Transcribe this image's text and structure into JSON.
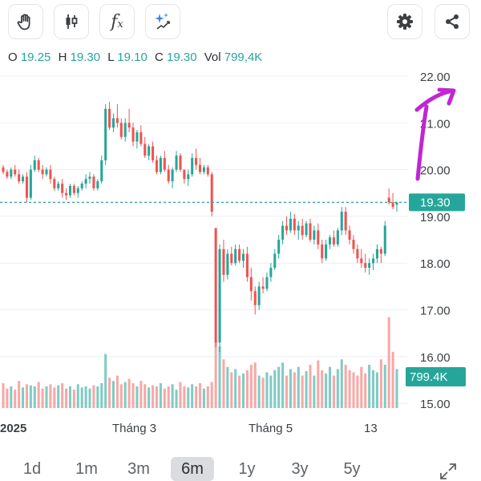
{
  "toolbar": {
    "left_buttons": [
      "hand-icon",
      "candlestick-icon",
      "function-icon",
      "sparkle-icon"
    ],
    "right_buttons": [
      "gear-icon",
      "share-icon"
    ],
    "function_glyph": "f",
    "function_sub": "x"
  },
  "ohlc": {
    "open_label": "O",
    "open": "19.25",
    "high_label": "H",
    "high": "19.30",
    "low_label": "L",
    "low": "19.10",
    "close_label": "C",
    "close": "19.30",
    "vol_label": "Vol",
    "vol": "799,4K"
  },
  "price_badge": "19.30",
  "volume_badge": "799.4K",
  "y_axis_ticks": [
    "22.00",
    "21.00",
    "20.00",
    "19.00",
    "18.00",
    "17.00",
    "16.00",
    "15.00"
  ],
  "x_axis_ticks": [
    "2025",
    "Tháng 3",
    "Tháng 5",
    "13"
  ],
  "ranges": [
    "1d",
    "1m",
    "3m",
    "6m",
    "1y",
    "3y",
    "5y"
  ],
  "active_range": "6m",
  "colors": {
    "up": "#26a69a",
    "down": "#ef5350",
    "volume_up": "#80cbc4",
    "volume_down": "#f7a8a6",
    "annotation": "#c026d3"
  },
  "chart_data": {
    "type": "candlestick",
    "x_labels": [
      "2025",
      "Tháng 3",
      "Tháng 5",
      "13"
    ],
    "ylim": [
      15,
      22.5
    ],
    "last_close": 19.3,
    "last_volume": "799.4K",
    "candles": [
      [
        20.05,
        20.1,
        19.9,
        19.95
      ],
      [
        19.95,
        20.0,
        19.8,
        19.85
      ],
      [
        19.85,
        20.05,
        19.8,
        20.0
      ],
      [
        20.0,
        20.1,
        19.85,
        19.9
      ],
      [
        19.9,
        20.0,
        19.7,
        19.75
      ],
      [
        19.75,
        19.9,
        19.7,
        19.85
      ],
      [
        19.85,
        19.95,
        19.3,
        19.4
      ],
      [
        19.4,
        20.1,
        19.35,
        20.0
      ],
      [
        20.0,
        20.3,
        19.95,
        20.2
      ],
      [
        20.2,
        20.25,
        19.95,
        20.0
      ],
      [
        20.0,
        20.1,
        19.8,
        19.9
      ],
      [
        19.9,
        20.05,
        19.85,
        20.0
      ],
      [
        20.0,
        20.1,
        19.7,
        19.8
      ],
      [
        19.8,
        19.85,
        19.55,
        19.6
      ],
      [
        19.6,
        19.75,
        19.55,
        19.7
      ],
      [
        19.7,
        19.8,
        19.4,
        19.5
      ],
      [
        19.5,
        19.6,
        19.35,
        19.45
      ],
      [
        19.45,
        19.7,
        19.4,
        19.65
      ],
      [
        19.65,
        19.7,
        19.45,
        19.5
      ],
      [
        19.5,
        19.65,
        19.4,
        19.6
      ],
      [
        19.6,
        19.75,
        19.55,
        19.7
      ],
      [
        19.7,
        19.9,
        19.6,
        19.8
      ],
      [
        19.8,
        19.95,
        19.7,
        19.85
      ],
      [
        19.85,
        19.9,
        19.55,
        19.6
      ],
      [
        19.6,
        19.8,
        19.55,
        19.75
      ],
      [
        19.75,
        20.3,
        19.7,
        20.2
      ],
      [
        20.2,
        21.4,
        20.1,
        21.3
      ],
      [
        21.3,
        21.45,
        20.85,
        20.9
      ],
      [
        20.9,
        21.2,
        20.8,
        21.1
      ],
      [
        21.1,
        21.4,
        20.9,
        21.0
      ],
      [
        21.0,
        21.1,
        20.65,
        20.7
      ],
      [
        20.7,
        21.1,
        20.6,
        21.0
      ],
      [
        21.0,
        21.3,
        20.8,
        20.9
      ],
      [
        20.9,
        21.0,
        20.5,
        20.6
      ],
      [
        20.6,
        20.85,
        20.45,
        20.8
      ],
      [
        20.8,
        20.95,
        20.5,
        20.55
      ],
      [
        20.55,
        20.7,
        20.25,
        20.3
      ],
      [
        20.3,
        20.55,
        20.2,
        20.5
      ],
      [
        20.5,
        20.6,
        20.15,
        20.2
      ],
      [
        20.2,
        20.3,
        19.9,
        19.95
      ],
      [
        19.95,
        20.3,
        19.9,
        20.25
      ],
      [
        20.25,
        20.4,
        19.95,
        20.0
      ],
      [
        20.0,
        20.1,
        19.7,
        19.75
      ],
      [
        19.75,
        20.05,
        19.6,
        20.0
      ],
      [
        20.0,
        20.4,
        19.95,
        20.3
      ],
      [
        20.3,
        20.35,
        19.95,
        20.0
      ],
      [
        20.0,
        19.95,
        19.7,
        19.8
      ],
      [
        19.8,
        20.0,
        19.65,
        19.9
      ],
      [
        19.9,
        20.35,
        19.85,
        20.25
      ],
      [
        20.25,
        20.45,
        20.0,
        20.1
      ],
      [
        20.1,
        20.25,
        19.9,
        19.95
      ],
      [
        19.95,
        20.1,
        19.9,
        20.05
      ],
      [
        20.05,
        20.1,
        19.85,
        19.9
      ],
      [
        19.9,
        19.95,
        19.0,
        19.1
      ],
      [
        18.75,
        18.75,
        16.2,
        16.3
      ],
      [
        16.3,
        18.4,
        16.1,
        18.3
      ],
      [
        18.3,
        18.5,
        17.6,
        17.75
      ],
      [
        17.75,
        18.3,
        17.65,
        18.2
      ],
      [
        18.2,
        18.35,
        17.95,
        18.0
      ],
      [
        18.0,
        18.4,
        17.95,
        18.3
      ],
      [
        18.3,
        18.4,
        18.0,
        18.05
      ],
      [
        18.05,
        18.3,
        17.9,
        18.2
      ],
      [
        18.2,
        18.35,
        17.6,
        17.7
      ],
      [
        17.7,
        17.9,
        17.2,
        17.4
      ],
      [
        17.4,
        17.5,
        16.9,
        17.1
      ],
      [
        17.1,
        17.6,
        17.0,
        17.5
      ],
      [
        17.5,
        17.7,
        17.35,
        17.45
      ],
      [
        17.45,
        17.8,
        17.4,
        17.7
      ],
      [
        17.7,
        18.0,
        17.6,
        17.9
      ],
      [
        17.9,
        18.3,
        17.85,
        18.2
      ],
      [
        18.2,
        18.6,
        18.1,
        18.5
      ],
      [
        18.5,
        18.9,
        18.4,
        18.8
      ],
      [
        18.8,
        19.0,
        18.6,
        18.7
      ],
      [
        18.7,
        19.1,
        18.65,
        18.95
      ],
      [
        18.95,
        19.05,
        18.6,
        18.7
      ],
      [
        18.7,
        18.9,
        18.5,
        18.8
      ],
      [
        18.8,
        18.95,
        18.5,
        18.6
      ],
      [
        18.6,
        18.9,
        18.55,
        18.85
      ],
      [
        18.85,
        18.95,
        18.45,
        18.5
      ],
      [
        18.5,
        18.8,
        18.4,
        18.7
      ],
      [
        18.7,
        18.85,
        18.3,
        18.4
      ],
      [
        18.4,
        18.5,
        18.0,
        18.1
      ],
      [
        18.1,
        18.5,
        18.05,
        18.4
      ],
      [
        18.4,
        18.6,
        18.3,
        18.55
      ],
      [
        18.55,
        18.7,
        18.35,
        18.4
      ],
      [
        18.4,
        18.75,
        18.35,
        18.7
      ],
      [
        18.7,
        19.2,
        18.6,
        19.1
      ],
      [
        19.1,
        19.2,
        18.6,
        18.7
      ],
      [
        18.7,
        18.8,
        18.4,
        18.5
      ],
      [
        18.5,
        18.6,
        18.2,
        18.3
      ],
      [
        18.3,
        18.4,
        18.0,
        18.1
      ],
      [
        18.1,
        18.3,
        17.9,
        18.0
      ],
      [
        18.0,
        18.2,
        17.8,
        17.9
      ],
      [
        17.9,
        18.1,
        17.75,
        18.0
      ],
      [
        18.0,
        18.2,
        17.85,
        18.1
      ],
      [
        18.1,
        18.4,
        18.0,
        18.3
      ],
      [
        18.3,
        18.35,
        18.0,
        18.2
      ],
      [
        18.2,
        18.9,
        18.15,
        18.8
      ],
      [
        19.4,
        19.6,
        19.25,
        19.3
      ],
      [
        19.3,
        19.5,
        19.15,
        19.2
      ],
      [
        19.25,
        19.3,
        19.1,
        19.3
      ]
    ],
    "volumes": [
      0.23,
      0.18,
      0.2,
      0.17,
      0.25,
      0.19,
      0.22,
      0.21,
      0.2,
      0.24,
      0.18,
      0.2,
      0.22,
      0.19,
      0.21,
      0.23,
      0.18,
      0.2,
      0.17,
      0.22,
      0.19,
      0.2,
      0.18,
      0.21,
      0.2,
      0.23,
      0.5,
      0.28,
      0.25,
      0.3,
      0.22,
      0.24,
      0.27,
      0.23,
      0.2,
      0.25,
      0.22,
      0.19,
      0.21,
      0.2,
      0.23,
      0.18,
      0.2,
      0.22,
      0.17,
      0.24,
      0.2,
      0.19,
      0.22,
      0.2,
      0.23,
      0.18,
      0.2,
      0.24,
      0.62,
      0.57,
      0.45,
      0.38,
      0.33,
      0.36,
      0.3,
      0.32,
      0.35,
      0.4,
      0.42,
      0.3,
      0.28,
      0.33,
      0.3,
      0.35,
      0.38,
      0.42,
      0.3,
      0.36,
      0.33,
      0.38,
      0.3,
      0.34,
      0.4,
      0.3,
      0.44,
      0.35,
      0.32,
      0.38,
      0.3,
      0.36,
      0.45,
      0.4,
      0.35,
      0.33,
      0.3,
      0.38,
      0.32,
      0.4,
      0.35,
      0.33,
      0.45,
      0.4,
      0.84,
      0.52,
      0.36
    ]
  }
}
